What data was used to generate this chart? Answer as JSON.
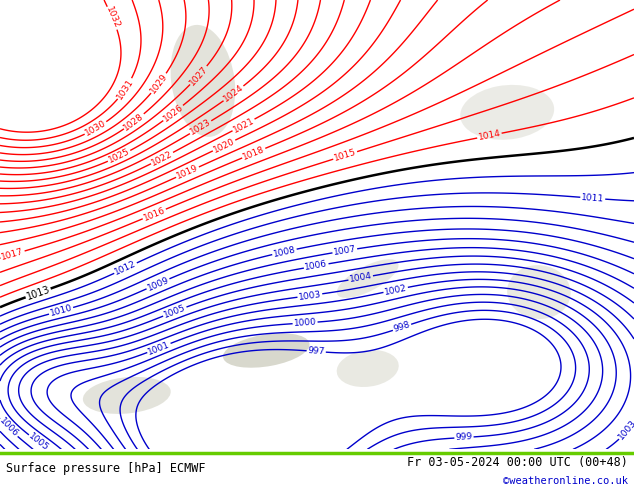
{
  "title_left": "Surface pressure [hPa] ECMWF",
  "title_right": "Fr 03-05-2024 00:00 UTC (00+48)",
  "copyright": "©weatheronline.co.uk",
  "map_bg": "#b5e07a",
  "land_gray": "#c8c8b8",
  "footer_bg": "#ffffff",
  "red_color": "#ff0000",
  "black_color": "#000000",
  "blue_color": "#0000cc",
  "copyright_color": "#0000cc",
  "green_line_color": "#66cc00",
  "fig_width": 6.34,
  "fig_height": 4.9,
  "dpi": 100
}
